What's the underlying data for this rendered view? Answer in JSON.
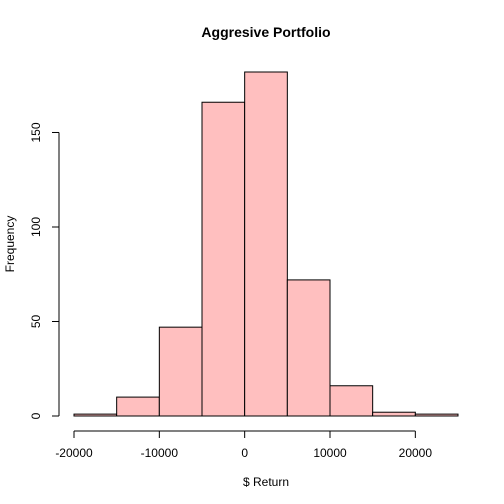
{
  "chart_data": {
    "type": "bar",
    "title": "Aggresive Portfolio",
    "xlabel": "$ Return",
    "ylabel": "Frequency",
    "bin_edges": [
      -20000,
      -15000,
      -10000,
      -5000,
      0,
      5000,
      10000,
      15000,
      20000,
      25000
    ],
    "values": [
      1,
      10,
      47,
      166,
      182,
      72,
      16,
      2,
      1
    ],
    "xlim": [
      -20000,
      25000
    ],
    "ylim": [
      0,
      182
    ],
    "x_ticks": [
      -20000,
      -10000,
      0,
      10000,
      20000
    ],
    "x_tick_labels": [
      "-20000",
      "-10000",
      "0",
      "10000",
      "20000"
    ],
    "y_ticks": [
      0,
      50,
      100,
      150
    ],
    "y_tick_labels": [
      "0",
      "50",
      "100",
      "150"
    ],
    "bar_color": "#FFBFBF",
    "grid": false
  }
}
